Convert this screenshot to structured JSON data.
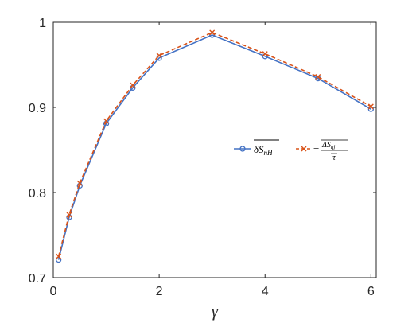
{
  "chart_data": {
    "type": "line",
    "xlabel": "γ",
    "xlim": [
      0,
      6.1
    ],
    "ylim": [
      0.7,
      1.0
    ],
    "xticks": [
      "0",
      "2",
      "4",
      "6"
    ],
    "yticks": [
      "0.7",
      "0.8",
      "0.9",
      "1"
    ],
    "grid": false,
    "legend_position": "center-right",
    "series": [
      {
        "name": "δS_nH (overlined)",
        "color": "#4472C4",
        "line_style": "solid",
        "marker": "circle",
        "x": [
          0.1,
          0.3,
          0.5,
          1.0,
          1.5,
          2.0,
          3.0,
          4.0,
          5.0,
          6.0
        ],
        "y": [
          0.721,
          0.771,
          0.808,
          0.881,
          0.923,
          0.958,
          0.985,
          0.96,
          0.934,
          0.898
        ]
      },
      {
        "name": "−ΔS_qj / τ (overlined)",
        "color": "#D95319",
        "line_style": "dashed",
        "marker": "x",
        "x": [
          0.1,
          0.3,
          0.5,
          1.0,
          1.5,
          2.0,
          3.0,
          4.0,
          5.0,
          6.0
        ],
        "y": [
          0.725,
          0.774,
          0.811,
          0.884,
          0.926,
          0.961,
          0.988,
          0.963,
          0.936,
          0.901
        ]
      }
    ]
  }
}
